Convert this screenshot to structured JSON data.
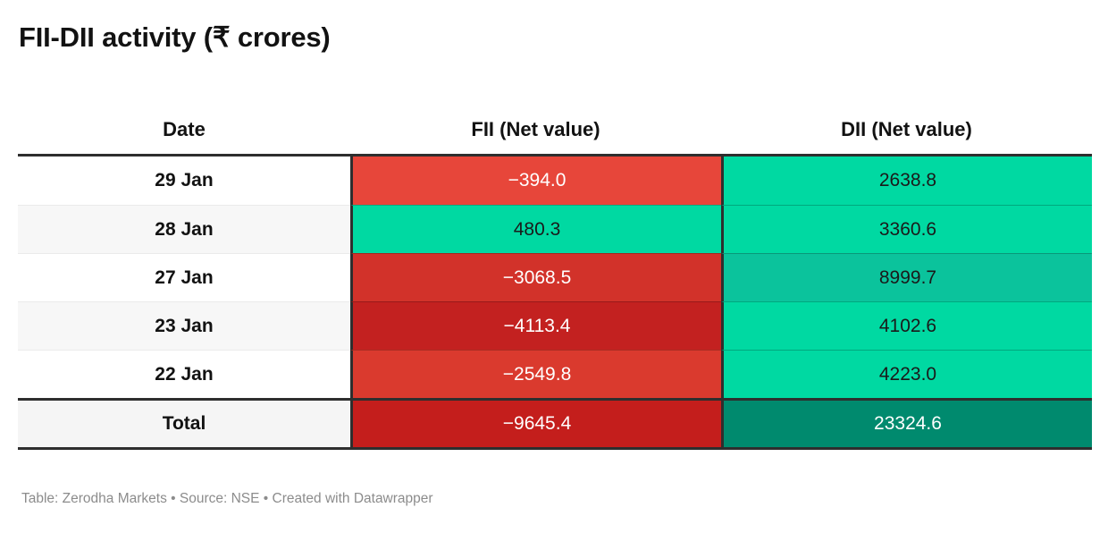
{
  "title": "FII-DII activity (₹ crores)",
  "footer": "Table: Zerodha Markets • Source: NSE • Created with Datawrapper",
  "accent_colors": {
    "negative_strong": "#c32120",
    "negative_mid": "#d2322a",
    "negative_light": "#e7463a",
    "positive_bright": "#00d9a2",
    "positive_mid": "#0bc39c",
    "positive_dark": "#008a6e",
    "border_dark": "#2e2e2e"
  },
  "table": {
    "columns": [
      {
        "label": "Date"
      },
      {
        "label": "FII (Net value)"
      },
      {
        "label": "DII (Net value)"
      }
    ],
    "rows": [
      {
        "date": "29 Jan",
        "fii": {
          "text": "−394.0",
          "bg": "#e7463a",
          "fg": "#ffffff"
        },
        "dii": {
          "text": "2638.8",
          "bg": "#00d9a2",
          "fg": "#1a1a1a"
        }
      },
      {
        "date": "28 Jan",
        "fii": {
          "text": "480.3",
          "bg": "#00d9a2",
          "fg": "#1a1a1a"
        },
        "dii": {
          "text": "3360.6",
          "bg": "#00d9a2",
          "fg": "#1a1a1a"
        }
      },
      {
        "date": "27 Jan",
        "fii": {
          "text": "−3068.5",
          "bg": "#d2322a",
          "fg": "#ffffff"
        },
        "dii": {
          "text": "8999.7",
          "bg": "#0bc39c",
          "fg": "#1a1a1a"
        }
      },
      {
        "date": "23 Jan",
        "fii": {
          "text": "−4113.4",
          "bg": "#c32120",
          "fg": "#ffffff"
        },
        "dii": {
          "text": "4102.6",
          "bg": "#00d9a2",
          "fg": "#1a1a1a"
        }
      },
      {
        "date": "22 Jan",
        "fii": {
          "text": "−2549.8",
          "bg": "#da3a2e",
          "fg": "#ffffff"
        },
        "dii": {
          "text": "4223.0",
          "bg": "#00d9a2",
          "fg": "#1a1a1a"
        }
      }
    ],
    "total": {
      "label": "Total",
      "fii": {
        "text": "−9645.4",
        "bg": "#c41e1c",
        "fg": "#ffffff"
      },
      "dii": {
        "text": "23324.6",
        "bg": "#008a6e",
        "fg": "#ffffff"
      }
    }
  },
  "chart_data": {
    "type": "table",
    "title": "FII-DII activity (₹ crores)",
    "categories": [
      "29 Jan",
      "28 Jan",
      "27 Jan",
      "23 Jan",
      "22 Jan",
      "Total"
    ],
    "series": [
      {
        "name": "FII (Net value)",
        "values": [
          -394.0,
          480.3,
          -3068.5,
          -4113.4,
          -2549.8,
          -9645.4
        ]
      },
      {
        "name": "DII (Net value)",
        "values": [
          2638.8,
          3360.6,
          8999.7,
          4102.6,
          4223.0,
          23324.6
        ]
      }
    ],
    "notes": "Cells heatmap-colored: red for negative FII flows, green for positive DII flows; darker shade = larger magnitude",
    "source": "Table: Zerodha Markets • Source: NSE • Created with Datawrapper"
  }
}
